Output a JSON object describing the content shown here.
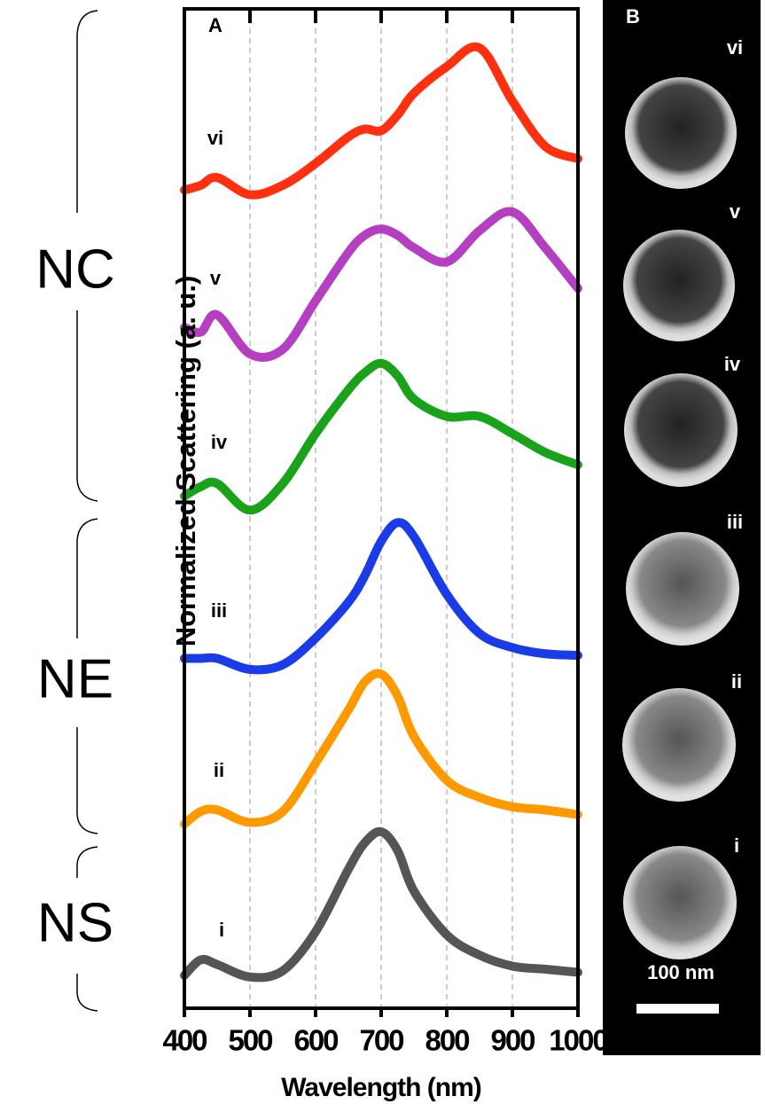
{
  "chart_data": {
    "type": "line",
    "panel_label": "A",
    "xlabel": "Wavelength (nm)",
    "ylabel": "Normalized Scattering (a. u.)",
    "x": [
      400,
      425,
      450,
      500,
      550,
      600,
      650,
      675,
      700,
      725,
      750,
      800,
      850,
      900,
      950,
      1000
    ],
    "xlim": [
      400,
      1000
    ],
    "xticks": [
      400,
      500,
      600,
      700,
      800,
      900,
      1000
    ],
    "ylim": [
      0,
      6.4
    ],
    "grid": true,
    "series": [
      {
        "name": "i",
        "color": "#555555",
        "values": [
          0.21,
          0.31,
          0.28,
          0.2,
          0.24,
          0.49,
          0.89,
          1.06,
          1.13,
          1.01,
          0.75,
          0.47,
          0.34,
          0.27,
          0.25,
          0.23
        ]
      },
      {
        "name": "ii",
        "color": "#ff9900",
        "values": [
          1.18,
          1.26,
          1.27,
          1.19,
          1.26,
          1.57,
          1.91,
          2.09,
          2.14,
          2.0,
          1.74,
          1.46,
          1.35,
          1.29,
          1.27,
          1.24
        ]
      },
      {
        "name": "iii",
        "color": "#1a3ce6",
        "values": [
          2.24,
          2.24,
          2.24,
          2.17,
          2.2,
          2.37,
          2.6,
          2.77,
          2.99,
          3.11,
          3.02,
          2.65,
          2.4,
          2.31,
          2.27,
          2.26
        ]
      },
      {
        "name": "iv",
        "color": "#1aa31a",
        "values": [
          3.28,
          3.34,
          3.36,
          3.19,
          3.36,
          3.68,
          3.96,
          4.07,
          4.13,
          4.05,
          3.9,
          3.79,
          3.79,
          3.68,
          3.56,
          3.48
        ]
      },
      {
        "name": "v",
        "color": "#b43fc0",
        "values": [
          4.36,
          4.33,
          4.44,
          4.19,
          4.22,
          4.53,
          4.84,
          4.95,
          4.99,
          4.95,
          4.87,
          4.78,
          4.98,
          5.1,
          4.87,
          4.61
        ]
      },
      {
        "name": "vi",
        "color": "#ff3010",
        "values": [
          5.24,
          5.27,
          5.32,
          5.21,
          5.27,
          5.41,
          5.58,
          5.63,
          5.62,
          5.72,
          5.86,
          6.03,
          6.15,
          5.81,
          5.52,
          5.44
        ]
      }
    ]
  },
  "group_labels": [
    "NC",
    "NE",
    "NS"
  ],
  "panel_b": {
    "label": "B",
    "scale_bar": "100 nm"
  }
}
